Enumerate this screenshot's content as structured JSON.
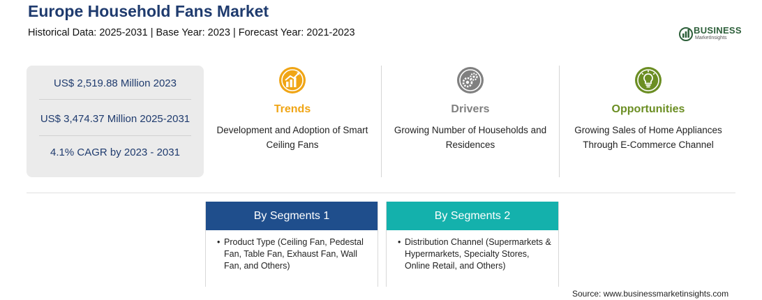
{
  "header": {
    "title": "Europe Household Fans Market",
    "subtitle": "Historical Data: 2025-2031 | Base Year: 2023 | Forecast Year: 2021-2023"
  },
  "logo": {
    "word": "BUSINESS",
    "sub": "MarketInsights",
    "icon": "bar-chart-logo-icon"
  },
  "stats": [
    {
      "text": "US$ 2,519.88 Million 2023"
    },
    {
      "text": "US$ 3,474.37 Million 2025-2031"
    },
    {
      "text": "4.1% CAGR by 2023 - 2031"
    }
  ],
  "columns": [
    {
      "heading": "Trends",
      "text": "Development and Adoption of Smart Ceiling Fans",
      "color": "#f0a515",
      "icon": "rising-chart-icon"
    },
    {
      "heading": "Drivers",
      "text": "Growing Number of Households and Residences",
      "color": "#808080",
      "icon": "gears-icon"
    },
    {
      "heading": "Opportunities",
      "text": "Growing Sales of Home Appliances Through E-Commerce Channel",
      "color": "#6b8e23",
      "icon": "lightbulb-icon"
    }
  ],
  "segments": [
    {
      "heading": "By Segments 1",
      "bullet": "•",
      "text": "Product Type (Ceiling Fan, Pedestal Fan, Table Fan, Exhaust Fan, Wall Fan, and Others)",
      "color": "#1f4e8c"
    },
    {
      "heading": "By Segments 2",
      "bullet": "•",
      "text": "Distribution Channel (Supermarkets & Hypermarkets, Specialty Stores, Online Retail, and Others)",
      "color": "#14b1ac"
    }
  ],
  "source": "Source: www.businessmarketinsights.com"
}
